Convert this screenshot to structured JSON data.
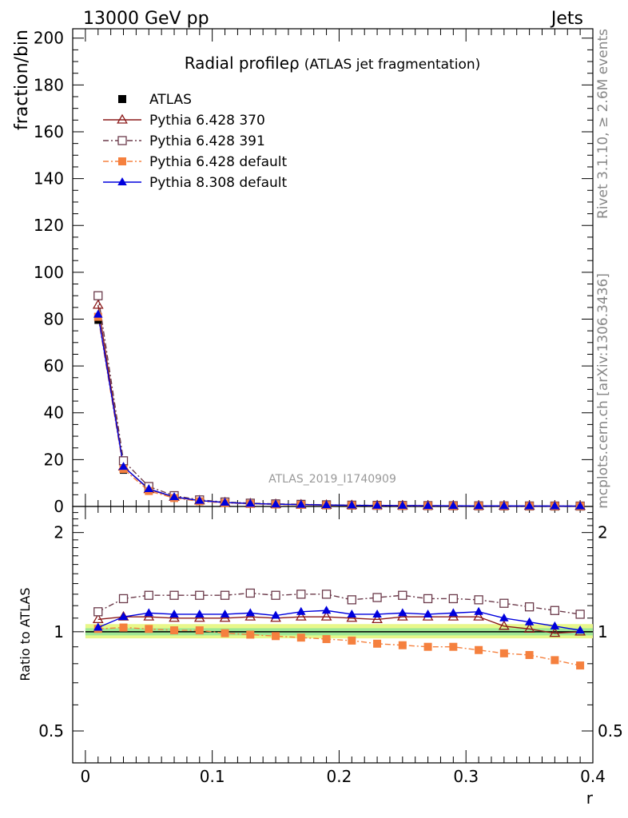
{
  "header": {
    "energy_label": "13000 GeV pp",
    "process_label": "Jets",
    "side_rivet": "Rivet 3.1.10, ≥ 2.6M events",
    "side_source": "mcplots.cern.ch [arXiv:1306.3436]",
    "analysis_id": "ATLAS_2019_I1740909"
  },
  "chart_data": {
    "type": "line",
    "title": "Radial profile",
    "title_symbol": "ρ",
    "title_note": "(ATLAS jet fragmentation)",
    "xlabel": "r",
    "ylabel": "fraction/bin",
    "ratio_ylabel": "Ratio to ATLAS",
    "xlim": [
      -0.01,
      0.4
    ],
    "ylim": [
      0,
      204
    ],
    "ratio_ylim": [
      0.4,
      2.4
    ],
    "ratio_scale": "log",
    "x_ticks": [
      "0",
      "0.1",
      "0.2",
      "0.3",
      "0.4"
    ],
    "y_ticks": [
      "0",
      "20",
      "40",
      "60",
      "80",
      "100",
      "120",
      "140",
      "160",
      "180",
      "200"
    ],
    "ratio_ticks": [
      "0.5",
      "1",
      "2"
    ],
    "legend_position": "top-left",
    "x": [
      0.01,
      0.03,
      0.05,
      0.07,
      0.09,
      0.11,
      0.13,
      0.15,
      0.17,
      0.19,
      0.21,
      0.23,
      0.25,
      0.27,
      0.29,
      0.31,
      0.33,
      0.35,
      0.37,
      0.39
    ],
    "data": {
      "name": "ATLAS",
      "values": [
        79.5,
        15.5,
        6.5,
        3.6,
        2.2,
        1.5,
        1.1,
        0.85,
        0.7,
        0.55,
        0.45,
        0.38,
        0.33,
        0.28,
        0.25,
        0.22,
        0.2,
        0.18,
        0.16,
        0.15
      ],
      "color": "#000000"
    },
    "series": [
      {
        "name": "Pythia 6.428 370",
        "color": "#8b1a1a",
        "marker": "open-triangle",
        "dash": "solid",
        "values": [
          86,
          17,
          7.3,
          4.0,
          2.5,
          1.7,
          1.25,
          0.95,
          0.78,
          0.62,
          0.5,
          0.42,
          0.37,
          0.31,
          0.28,
          0.24,
          0.21,
          0.18,
          0.16,
          0.15
        ],
        "ratio": [
          1.09,
          1.11,
          1.11,
          1.1,
          1.1,
          1.1,
          1.11,
          1.1,
          1.11,
          1.11,
          1.1,
          1.09,
          1.11,
          1.11,
          1.11,
          1.11,
          1.04,
          1.02,
          0.99,
          1.0
        ]
      },
      {
        "name": "Pythia 6.428 391",
        "color": "#6b3a4a",
        "marker": "open-square",
        "dash": "dashdot",
        "values": [
          90,
          19.5,
          8.5,
          4.6,
          2.8,
          1.9,
          1.4,
          1.1,
          0.9,
          0.7,
          0.56,
          0.48,
          0.42,
          0.35,
          0.31,
          0.27,
          0.24,
          0.21,
          0.18,
          0.17
        ],
        "ratio": [
          1.15,
          1.26,
          1.29,
          1.29,
          1.29,
          1.29,
          1.31,
          1.29,
          1.3,
          1.3,
          1.25,
          1.27,
          1.29,
          1.26,
          1.26,
          1.25,
          1.22,
          1.19,
          1.16,
          1.13
        ]
      },
      {
        "name": "Pythia 6.428 default",
        "color": "#f5803e",
        "marker": "filled-square",
        "dash": "dashdot",
        "values": [
          81,
          16,
          6.6,
          3.6,
          2.2,
          1.5,
          1.1,
          0.83,
          0.68,
          0.53,
          0.43,
          0.35,
          0.3,
          0.25,
          0.22,
          0.19,
          0.17,
          0.15,
          0.13,
          0.12
        ],
        "ratio": [
          1.02,
          1.03,
          1.02,
          1.01,
          1.01,
          0.99,
          0.98,
          0.97,
          0.96,
          0.95,
          0.94,
          0.92,
          0.91,
          0.9,
          0.9,
          0.88,
          0.86,
          0.85,
          0.82,
          0.79
        ]
      },
      {
        "name": "Pythia 8.308 default",
        "color": "#0000dd",
        "marker": "filled-triangle",
        "dash": "solid",
        "values": [
          82,
          17,
          7.5,
          4.1,
          2.5,
          1.7,
          1.25,
          0.95,
          0.8,
          0.63,
          0.5,
          0.42,
          0.37,
          0.31,
          0.28,
          0.25,
          0.22,
          0.19,
          0.17,
          0.15
        ],
        "ratio": [
          1.03,
          1.11,
          1.14,
          1.13,
          1.13,
          1.13,
          1.14,
          1.12,
          1.15,
          1.16,
          1.13,
          1.13,
          1.14,
          1.13,
          1.14,
          1.15,
          1.1,
          1.07,
          1.04,
          1.01
        ]
      }
    ]
  }
}
